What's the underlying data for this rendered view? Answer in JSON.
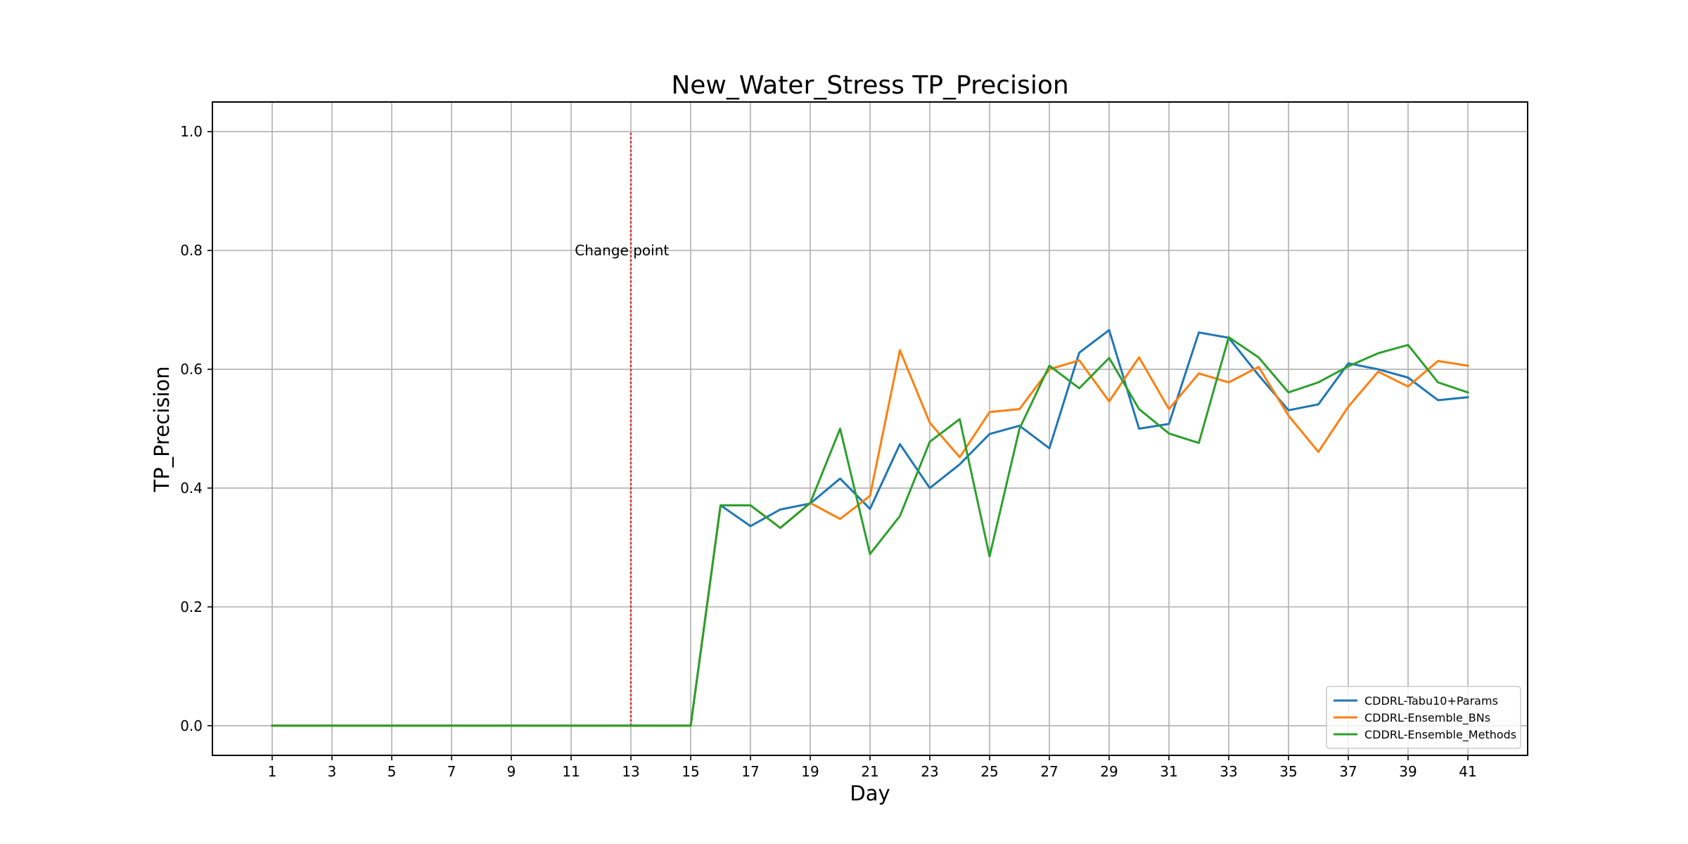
{
  "chart_data": {
    "type": "line",
    "title": "New_Water_Stress TP_Precision",
    "xlabel": "Day",
    "ylabel": "TP_Precision",
    "xlim": [
      -1,
      43
    ],
    "ylim": [
      -0.05,
      1.05
    ],
    "xticks": [
      1,
      3,
      5,
      7,
      9,
      11,
      13,
      15,
      17,
      19,
      21,
      23,
      25,
      27,
      29,
      31,
      33,
      35,
      37,
      39,
      41
    ],
    "yticks": [
      0.0,
      0.2,
      0.4,
      0.6,
      0.8,
      1.0
    ],
    "ytick_labels": [
      "0.0",
      "0.2",
      "0.4",
      "0.6",
      "0.8",
      "1.0"
    ],
    "grid": true,
    "legend_position": "lower-right",
    "x": [
      1,
      2,
      3,
      4,
      5,
      6,
      7,
      8,
      9,
      10,
      11,
      12,
      13,
      14,
      15,
      16,
      17,
      18,
      19,
      20,
      21,
      22,
      23,
      24,
      25,
      26,
      27,
      28,
      29,
      30,
      31,
      32,
      33,
      34,
      35,
      36,
      37,
      38,
      39,
      40,
      41
    ],
    "series": [
      {
        "name": "CDDRL-Tabu10+Params",
        "color": "#1f77b4",
        "values": [
          0,
          0,
          0,
          0,
          0,
          0,
          0,
          0,
          0,
          0,
          0,
          0,
          0,
          0,
          0,
          0.371,
          0.336,
          0.364,
          0.374,
          0.416,
          0.365,
          0.474,
          0.4,
          0.44,
          0.491,
          0.505,
          0.467,
          0.628,
          0.666,
          0.5,
          0.508,
          0.662,
          0.653,
          0.59,
          0.531,
          0.541,
          0.61,
          0.6,
          0.586,
          0.548,
          0.553
        ]
      },
      {
        "name": "CDDRL-Ensemble_BNs",
        "color": "#ff7f0e",
        "values": [
          0,
          0,
          0,
          0,
          0,
          0,
          0,
          0,
          0,
          0,
          0,
          0,
          0,
          0,
          0,
          0.371,
          0.371,
          0.333,
          0.375,
          0.348,
          0.387,
          0.632,
          0.51,
          0.452,
          0.528,
          0.533,
          0.6,
          0.615,
          0.546,
          0.62,
          0.533,
          0.593,
          0.578,
          0.604,
          0.522,
          0.461,
          0.537,
          0.596,
          0.571,
          0.614,
          0.606
        ]
      },
      {
        "name": "CDDRL-Ensemble_Methods",
        "color": "#2ca02c",
        "values": [
          0,
          0,
          0,
          0,
          0,
          0,
          0,
          0,
          0,
          0,
          0,
          0,
          0,
          0,
          0,
          0.371,
          0.371,
          0.333,
          0.375,
          0.5,
          0.289,
          0.353,
          0.478,
          0.516,
          0.285,
          0.5,
          0.606,
          0.568,
          0.619,
          0.533,
          0.492,
          0.476,
          0.654,
          0.62,
          0.561,
          0.578,
          0.605,
          0.627,
          0.641,
          0.578,
          0.561
        ]
      }
    ],
    "annotations": [
      {
        "type": "vline",
        "x": 13,
        "y_range": [
          0,
          1.0
        ],
        "color": "#d62728",
        "style": "dotted"
      },
      {
        "type": "text",
        "text": "Change point",
        "x": 12.7,
        "y": 0.8
      }
    ]
  }
}
